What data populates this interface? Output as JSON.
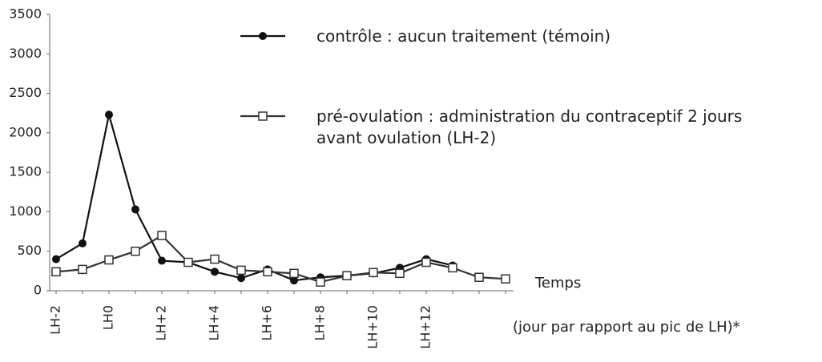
{
  "chart_data": {
    "type": "line",
    "x_label": "Temps",
    "x_sublabel": "(jour par rapport au pic de LH)*",
    "categories": [
      "LH-2",
      null,
      "LH0",
      null,
      "LH+2",
      null,
      "LH+4",
      null,
      "LH+6",
      null,
      "LH+8",
      null,
      "LH+10",
      null,
      "LH+12",
      null,
      null,
      null
    ],
    "series": [
      {
        "name": "contrôle : aucun traitement (témoin)",
        "color": "#111111",
        "marker": "filled",
        "values": [
          400,
          600,
          2230,
          1030,
          380,
          360,
          240,
          160,
          270,
          130,
          170,
          190,
          220,
          290,
          400,
          320,
          null,
          null
        ]
      },
      {
        "name": "pré-ovulation : administration du contraceptif 2 jours avant ovulation (LH-2)",
        "color": "#333333",
        "marker": "open",
        "values": [
          240,
          270,
          390,
          500,
          700,
          360,
          400,
          260,
          240,
          220,
          110,
          190,
          230,
          220,
          360,
          290,
          170,
          150
        ]
      }
    ],
    "ylim": [
      0,
      3500
    ],
    "yticks": [
      0,
      500,
      1000,
      1500,
      2000,
      2500,
      3000,
      3500
    ]
  }
}
